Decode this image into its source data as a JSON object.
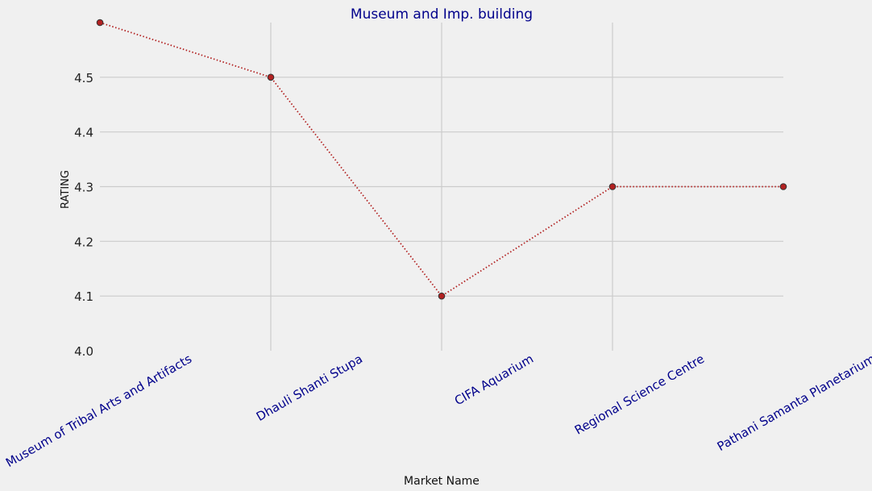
{
  "chart_data": {
    "type": "line",
    "title": "Museum and Imp. building",
    "xlabel": "Market Name",
    "ylabel": "RATING",
    "categories": [
      "Museum of Tribal Arts and Artifacts",
      "Dhauli Shanti Stupa",
      "CIFA Aquarium",
      "Regional Science Centre",
      "Pathani Samanta Planetarium"
    ],
    "values": [
      4.6,
      4.5,
      4.1,
      4.3,
      4.3
    ],
    "ylim": [
      4.0,
      4.6
    ],
    "yticks": [
      "4.0",
      "4.1",
      "4.2",
      "4.3",
      "4.4",
      "4.5"
    ],
    "grid": true,
    "line_style": "dotted",
    "colors": {
      "background": "#f0f0f0",
      "grid": "#cbcbcb",
      "line": "#b22222",
      "marker": "#b22222",
      "marker_edge": "#333333",
      "title": "#00008b",
      "xtick_label": "#00008b",
      "ytick_label": "#222222",
      "axis_label": "#111111"
    }
  }
}
